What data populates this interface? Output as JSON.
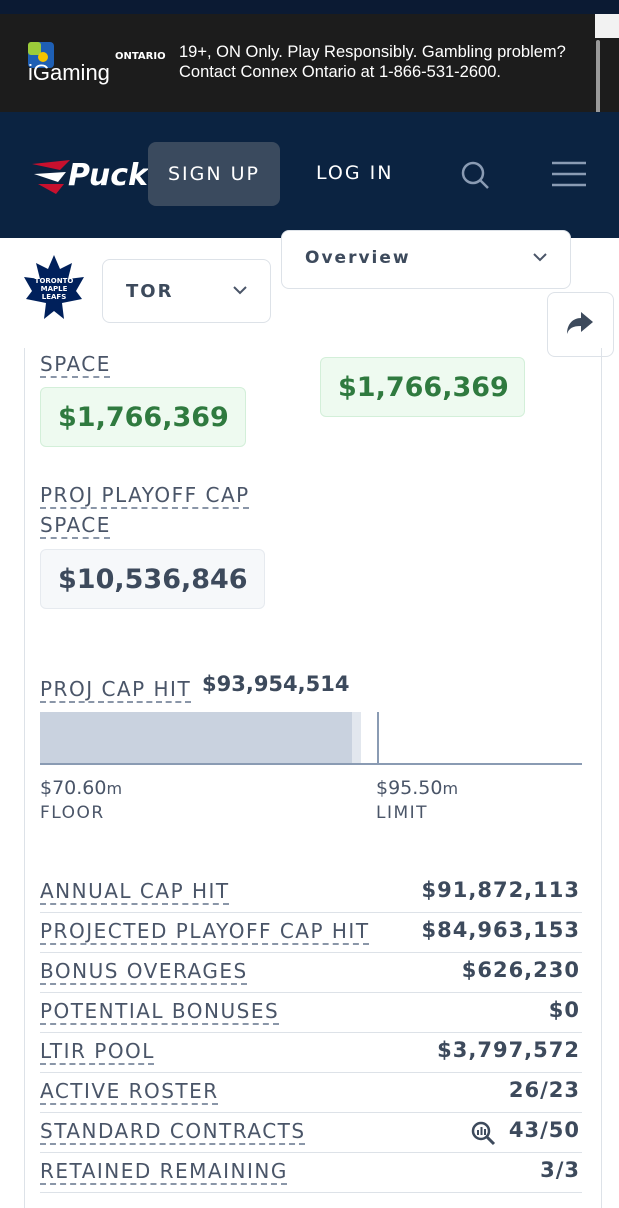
{
  "ad": {
    "brand_region": "ONTARIO",
    "brand": "iGaming",
    "line1": "19+, ON Only. Play Responsibly. Gambling problem?",
    "line2": "Contact Connex Ontario at 1-866-531-2600."
  },
  "nav": {
    "logo": "PuckP",
    "sign_up": "SIGN UP",
    "log_in": "LOG IN"
  },
  "team_bar": {
    "team_logo": [
      "TORONTO",
      "MAPLE",
      "LEAFS"
    ],
    "team": "TOR",
    "view": "Overview"
  },
  "cap_space": {
    "label": "SPACE",
    "value": "$1,766,369",
    "right_value": "$1,766,369"
  },
  "playoff_cap_space": {
    "label": "PROJ PLAYOFF CAP SPACE",
    "value": "$10,536,846"
  },
  "cap_hit": {
    "label": "PROJ CAP HIT",
    "value": "$93,954,514",
    "floor": {
      "amount": "$70.60",
      "unit": "m",
      "label": "FLOOR"
    },
    "limit": {
      "amount": "$95.50",
      "unit": "m",
      "label": "LIMIT"
    }
  },
  "table": {
    "rows": [
      [
        "ANNUAL CAP HIT",
        "$91,872,113"
      ],
      [
        "PROJECTED PLAYOFF CAP HIT",
        "$84,963,153"
      ],
      [
        "BONUS OVERAGES",
        "$626,230"
      ],
      [
        "POTENTIAL BONUSES",
        "$0"
      ],
      [
        "LTIR POOL",
        "$3,797,572"
      ],
      [
        "ACTIVE ROSTER",
        "26/23"
      ],
      [
        "STANDARD CONTRACTS",
        "43/50"
      ],
      [
        "RETAINED REMAINING",
        "3/3"
      ]
    ]
  }
}
